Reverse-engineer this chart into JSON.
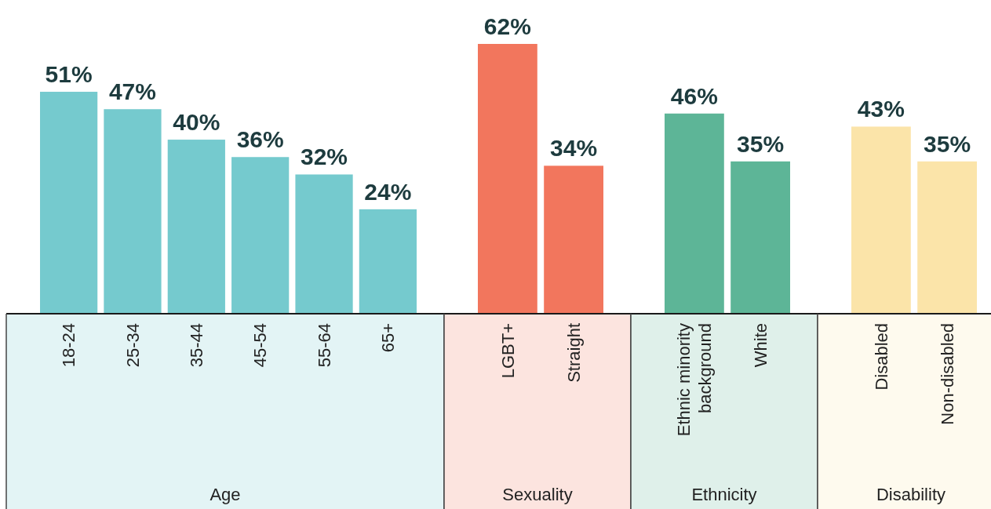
{
  "chart_data": [
    {
      "type": "bar",
      "xlabel": "Age",
      "categories": [
        "18-24",
        "25-34",
        "35-44",
        "45-54",
        "55-64",
        "65+"
      ],
      "values": [
        51,
        47,
        40,
        36,
        32,
        24
      ],
      "value_labels": [
        "51%",
        "47%",
        "40%",
        "36%",
        "32%",
        "24%"
      ],
      "color": "#75cace"
    },
    {
      "type": "bar",
      "xlabel": "Sexuality",
      "categories": [
        "LGBT+",
        "Straight"
      ],
      "values": [
        62,
        34
      ],
      "value_labels": [
        "62%",
        "34%"
      ],
      "color": "#f2765d"
    },
    {
      "type": "bar",
      "xlabel": "Ethnicity",
      "categories": [
        "Ethnic minority background",
        "White"
      ],
      "values": [
        46,
        35
      ],
      "value_labels": [
        "46%",
        "35%"
      ],
      "color": "#5db597"
    },
    {
      "type": "bar",
      "xlabel": "Disability",
      "categories": [
        "Disabled",
        "Non-disabled"
      ],
      "values": [
        43,
        35
      ],
      "value_labels": [
        "43%",
        "35%"
      ],
      "color": "#fbe4a9"
    }
  ]
}
